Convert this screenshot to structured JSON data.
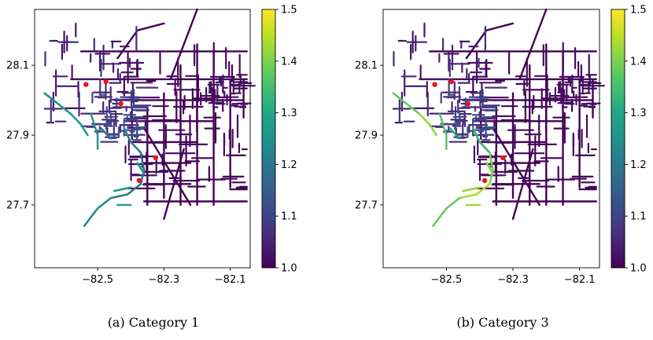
{
  "chart_data": [
    {
      "type": "map",
      "caption": "(a) Category 1",
      "xlim": [
        -82.69,
        -82.04
      ],
      "ylim": [
        27.52,
        28.26
      ],
      "xticks": [
        {
          "value": -82.5,
          "label": "−82.5"
        },
        {
          "value": -82.3,
          "label": "−82.3"
        },
        {
          "value": -82.1,
          "label": "−82.1"
        }
      ],
      "yticks": [
        {
          "value": 28.1,
          "label": "28.1"
        },
        {
          "value": 27.9,
          "label": "27.9"
        },
        {
          "value": 27.7,
          "label": "27.7"
        }
      ],
      "colorbar": {
        "colormap": "viridis",
        "range": [
          1.0,
          1.5
        ],
        "ticks": [
          {
            "value": 1.5,
            "label": "1.5"
          },
          {
            "value": 1.4,
            "label": "1.4"
          },
          {
            "value": 1.3,
            "label": "1.3"
          },
          {
            "value": 1.2,
            "label": "1.2"
          },
          {
            "value": 1.1,
            "label": "1.1"
          },
          {
            "value": 1.0,
            "label": "1.0"
          }
        ]
      },
      "markers": {
        "color": "#e8141d",
        "points": [
          [
            -82.535,
            28.045
          ],
          [
            -82.475,
            28.053
          ],
          [
            -82.43,
            27.99
          ],
          [
            -82.325,
            27.835
          ],
          [
            -82.375,
            27.77
          ]
        ]
      },
      "coastal_values": [
        1.25,
        1.28,
        1.26,
        1.22,
        1.18,
        1.2,
        1.24,
        1.28,
        1.3,
        1.27
      ]
    },
    {
      "type": "map",
      "caption": "(b) Category 3",
      "xlim": [
        -82.69,
        -82.04
      ],
      "ylim": [
        27.52,
        28.26
      ],
      "xticks": [
        {
          "value": -82.5,
          "label": "−82.5"
        },
        {
          "value": -82.3,
          "label": "−82.3"
        },
        {
          "value": -82.1,
          "label": "−82.1"
        }
      ],
      "yticks": [
        {
          "value": 28.1,
          "label": "28.1"
        },
        {
          "value": 27.9,
          "label": "27.9"
        },
        {
          "value": 27.7,
          "label": "27.7"
        }
      ],
      "colorbar": {
        "colormap": "viridis",
        "range": [
          1.0,
          1.5
        ],
        "ticks": [
          {
            "value": 1.5,
            "label": "1.5"
          },
          {
            "value": 1.4,
            "label": "1.4"
          },
          {
            "value": 1.3,
            "label": "1.3"
          },
          {
            "value": 1.2,
            "label": "1.2"
          },
          {
            "value": 1.1,
            "label": "1.1"
          },
          {
            "value": 1.0,
            "label": "1.0"
          }
        ]
      },
      "markers": {
        "color": "#e8141d",
        "points": [
          [
            -82.535,
            28.045
          ],
          [
            -82.485,
            28.053
          ],
          [
            -82.435,
            27.99
          ],
          [
            -82.33,
            27.835
          ],
          [
            -82.385,
            27.77
          ]
        ]
      },
      "coastal_values": [
        1.38,
        1.42,
        1.36,
        1.33,
        1.4,
        1.44,
        1.38,
        1.42,
        1.43,
        1.4
      ]
    }
  ]
}
